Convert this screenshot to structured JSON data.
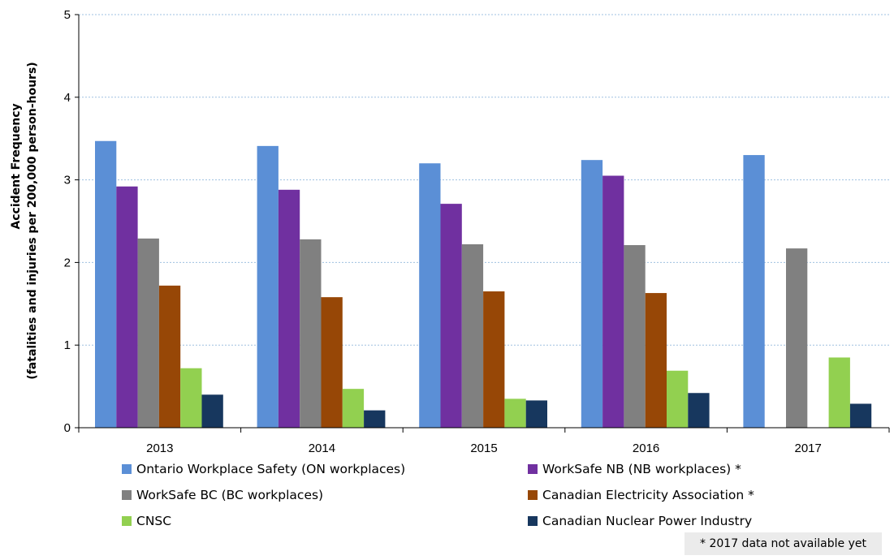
{
  "chart_data": {
    "type": "bar",
    "title": "",
    "xlabel": "",
    "ylabel_line1": "Accident Frequency",
    "ylabel_line2": "(fatalities and injuries per 200,000  person-hours)",
    "ylim": [
      0,
      5
    ],
    "yticks": [
      "0",
      "1",
      "2",
      "3",
      "4",
      "5"
    ],
    "grid": true,
    "legend_position": "bottom",
    "categories": [
      "2013",
      "2014",
      "2015",
      "2016",
      "2017"
    ],
    "series": [
      {
        "name": "Ontario Workplace Safety (ON workplaces)",
        "color": "#5b8fd6",
        "values": [
          3.47,
          3.41,
          3.2,
          3.24,
          3.3
        ]
      },
      {
        "name": "WorkSafe NB (NB workplaces) *",
        "color": "#7030a0",
        "values": [
          2.92,
          2.88,
          2.71,
          3.05,
          null
        ]
      },
      {
        "name": "WorkSafe BC (BC workplaces)",
        "color": "#808080",
        "values": [
          2.29,
          2.28,
          2.22,
          2.21,
          2.17
        ]
      },
      {
        "name": "Canadian Electricity Association *",
        "color": "#974706",
        "values": [
          1.72,
          1.58,
          1.65,
          1.63,
          null
        ]
      },
      {
        "name": "CNSC",
        "color": "#92d050",
        "values": [
          0.72,
          0.47,
          0.35,
          0.69,
          0.85
        ]
      },
      {
        "name": "Canadian Nuclear Power Industry",
        "color": "#17375e",
        "values": [
          0.4,
          0.21,
          0.33,
          0.42,
          0.29
        ]
      }
    ],
    "note": "* 2017 data  not available yet"
  }
}
